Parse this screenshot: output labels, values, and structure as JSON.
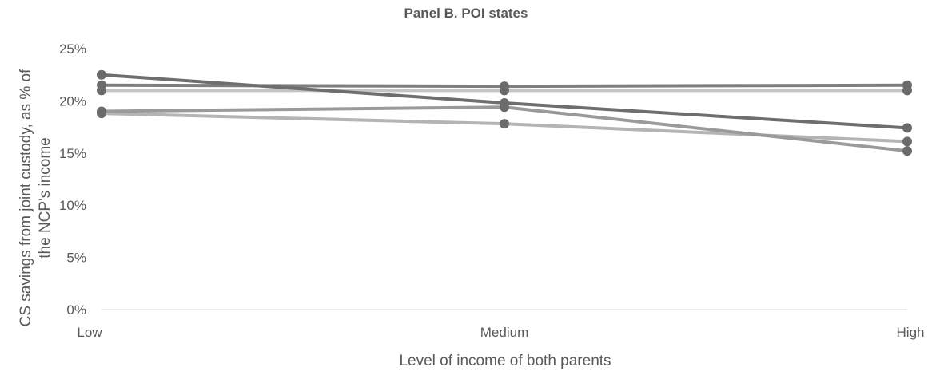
{
  "chart_data": {
    "type": "line",
    "title": "Panel B. POI states",
    "xlabel": "Level of income of both parents",
    "ylabel_lines": [
      "CS savings from joint custody, as % of",
      "the NCP's income"
    ],
    "categories": [
      "Low",
      "Medium",
      "High"
    ],
    "ylim": [
      0,
      25
    ],
    "yticks": [
      0,
      5,
      10,
      15,
      20,
      25
    ],
    "ytick_labels": [
      "0%",
      "5%",
      "10%",
      "15%",
      "20%",
      "25%"
    ],
    "grid": false,
    "legend": "none",
    "series": [
      {
        "values": [
          22.5,
          19.8,
          17.4
        ],
        "color": "#6e6e6e"
      },
      {
        "values": [
          21.5,
          21.4,
          21.5
        ],
        "color": "#7e7e7e"
      },
      {
        "values": [
          19.0,
          19.4,
          15.2
        ],
        "color": "#9a9a9a"
      },
      {
        "values": [
          21.0,
          21.0,
          21.0
        ],
        "color": "#c4c4c4"
      },
      {
        "values": [
          18.8,
          17.8,
          16.1
        ],
        "color": "#b4b4b4"
      }
    ],
    "marker_color": "#6b6b6b"
  }
}
